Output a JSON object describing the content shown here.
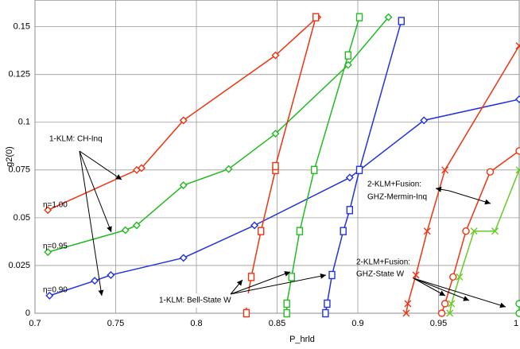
{
  "chart_data": {
    "type": "line",
    "x_label": "P_hrld",
    "y_label": "g2(0)",
    "xlim": [
      0.7,
      1.0
    ],
    "ylim": [
      0,
      0.164
    ],
    "xticks": [
      0.7,
      0.75,
      0.8,
      0.85,
      0.9,
      0.95,
      1
    ],
    "yticks": [
      0,
      0.025,
      0.05,
      0.075,
      0.1,
      0.125,
      0.15
    ],
    "grid": true,
    "series": [
      {
        "color": "#ee3311",
        "marker": "diamond",
        "x": [
          0.708,
          0.763,
          0.766,
          0.792,
          0.849,
          0.875
        ],
        "values": [
          0.054,
          0.075,
          0.076,
          0.101,
          0.135,
          0.155
        ]
      },
      {
        "color": "#22bb22",
        "marker": "diamond",
        "x": [
          0.708,
          0.756,
          0.763,
          0.792,
          0.82,
          0.849,
          0.894,
          0.919
        ],
        "values": [
          0.032,
          0.0435,
          0.046,
          0.067,
          0.0755,
          0.094,
          0.13,
          0.155
        ]
      },
      {
        "color": "#2233dd",
        "marker": "diamond",
        "x": [
          0.709,
          0.737,
          0.747,
          0.792,
          0.836,
          0.895,
          0.941,
          1.0
        ],
        "values": [
          0.0092,
          0.017,
          0.02,
          0.029,
          0.046,
          0.071,
          0.101,
          0.112
        ]
      },
      {
        "color": "#ee3311",
        "marker": "square",
        "x": [
          0.831,
          0.831,
          0.834,
          0.84,
          0.849,
          0.849,
          0.874
        ],
        "values": [
          0,
          0.005,
          0.019,
          0.043,
          0.075,
          0.077,
          0.155
        ]
      },
      {
        "color": "#22bb22",
        "marker": "square",
        "x": [
          0.856,
          0.856,
          0.859,
          0.864,
          0.873,
          0.894,
          0.901
        ],
        "values": [
          0,
          0.005,
          0.019,
          0.043,
          0.075,
          0.135,
          0.155
        ]
      },
      {
        "color": "#2233dd",
        "marker": "square",
        "x": [
          0.88,
          0.881,
          0.884,
          0.891,
          0.895,
          0.901,
          0.927
        ],
        "values": [
          0,
          0.005,
          0.02,
          0.043,
          0.054,
          0.075,
          0.153
        ]
      },
      {
        "color": "#ee3311",
        "marker": "x",
        "x": [
          0.93,
          0.931,
          0.936,
          0.943,
          0.954,
          1.0
        ],
        "values": [
          0,
          0.005,
          0.02,
          0.043,
          0.075,
          0.14
        ]
      },
      {
        "color": "#ee3311",
        "marker": "circle",
        "x": [
          0.952,
          0.954,
          0.959,
          0.967,
          0.982,
          1.0
        ],
        "values": [
          0,
          0.005,
          0.019,
          0.043,
          0.074,
          0.085
        ]
      },
      {
        "color": "#66cc22",
        "marker": "x",
        "x": [
          0.957,
          0.958,
          0.963,
          0.972,
          0.985,
          1.0
        ],
        "values": [
          0,
          0.005,
          0.019,
          0.043,
          0.043,
          0.075
        ]
      },
      {
        "color": "#22bb22",
        "marker": "circle",
        "x": [
          1.0,
          1.0
        ],
        "values": [
          0,
          0.005
        ]
      }
    ],
    "annotations": [
      {
        "text": "1-KLM: CH-Inq",
        "color": "#000000"
      },
      {
        "text": "η=1.00",
        "color": "#ee3311"
      },
      {
        "text": "η=0.95",
        "color": "#22bb22"
      },
      {
        "text": "η=0.90",
        "color": "#2233dd"
      },
      {
        "text": "1-KLM: Bell-State W",
        "color": "#000000"
      },
      {
        "text": "2-KLM+Fusion:",
        "color": "#000000"
      },
      {
        "text": "GHZ-Mermin-Inq",
        "color": "#000000"
      },
      {
        "text": "2-KLM+Fusion:",
        "color": "#000000"
      },
      {
        "text": "GHZ-State W",
        "color": "#000000"
      }
    ]
  }
}
